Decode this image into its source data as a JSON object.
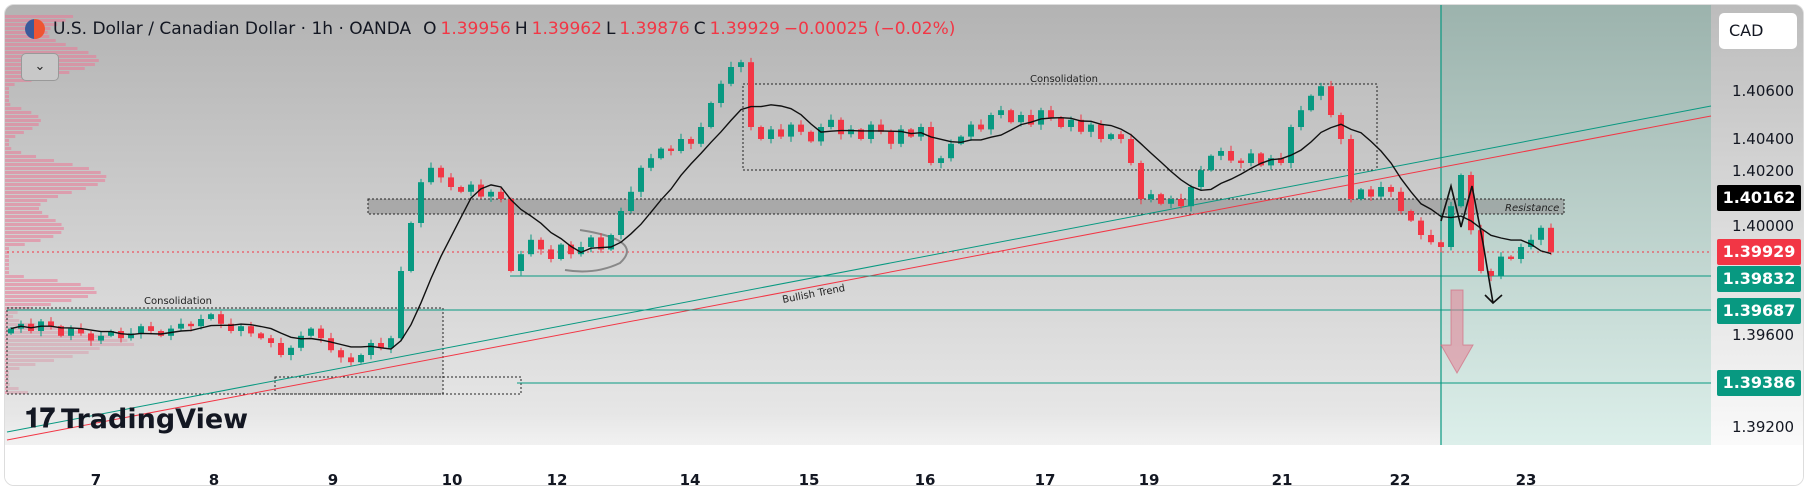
{
  "header": {
    "title": "U.S. Dollar / Canadian Dollar · 1h · OANDA",
    "open_label": "O",
    "open": "1.39956",
    "high_label": "H",
    "high": "1.39962",
    "low_label": "L",
    "low": "1.39876",
    "close_label": "C",
    "close": "1.39929",
    "change": "−0.00025 (−0.02%)"
  },
  "currency_button": "CAD",
  "dropdown_icon": "chevron-down-icon",
  "logo": "TradingView",
  "colors": {
    "up": "#089981",
    "down": "#f23645",
    "ma": "#111111",
    "target_zone": "#9fb8b2"
  },
  "chart_data": {
    "type": "candlestick",
    "title": "U.S. Dollar / Canadian Dollar · 1h · OANDA",
    "ylim": [
      1.3908,
      1.409
    ],
    "y_ticks": [
      "1.40600",
      "1.40400",
      "1.40200",
      "1.40000",
      "1.39600",
      "1.39200"
    ],
    "x_ticks": [
      "7",
      "8",
      "9",
      "10",
      "12",
      "14",
      "15",
      "16",
      "17",
      "19",
      "21",
      "22",
      "23"
    ],
    "closes": [
      1.3961,
      1.3963,
      1.396,
      1.3964,
      1.3962,
      1.3958,
      1.3961,
      1.3959,
      1.3956,
      1.3958,
      1.396,
      1.3957,
      1.3959,
      1.3962,
      1.396,
      1.3958,
      1.3961,
      1.3963,
      1.3962,
      1.3965,
      1.3967,
      1.3963,
      1.396,
      1.3962,
      1.3959,
      1.3957,
      1.3955,
      1.395,
      1.3953,
      1.3958,
      1.3961,
      1.3957,
      1.3952,
      1.3949,
      1.3947,
      1.395,
      1.3955,
      1.3953,
      1.3957,
      1.3985,
      1.4005,
      1.4022,
      1.4028,
      1.4024,
      1.402,
      1.4018,
      1.4021,
      1.4016,
      1.4018,
      1.4015,
      1.3985,
      1.3992,
      1.3998,
      1.3994,
      1.399,
      1.3996,
      1.3992,
      1.3995,
      1.3999,
      1.3994,
      1.4,
      1.401,
      1.4018,
      1.4028,
      1.4032,
      1.4036,
      1.4035,
      1.404,
      1.4038,
      1.4045,
      1.4055,
      1.4063,
      1.407,
      1.4072,
      1.4045,
      1.404,
      1.4044,
      1.4041,
      1.4046,
      1.4043,
      1.4039,
      1.4045,
      1.4048,
      1.4042,
      1.4044,
      1.404,
      1.4046,
      1.4043,
      1.4038,
      1.4044,
      1.4041,
      1.4045,
      1.403,
      1.4032,
      1.4038,
      1.4041,
      1.4046,
      1.4044,
      1.405,
      1.4052,
      1.4047,
      1.405,
      1.4046,
      1.4052,
      1.4049,
      1.4045,
      1.4048,
      1.4043,
      1.4046,
      1.404,
      1.4042,
      1.404,
      1.403,
      1.4015,
      1.4017,
      1.4013,
      1.4015,
      1.4012,
      1.402,
      1.4027,
      1.4033,
      1.4035,
      1.4031,
      1.403,
      1.4034,
      1.4029,
      1.4032,
      1.403,
      1.4045,
      1.4052,
      1.4058,
      1.4062,
      1.405,
      1.404,
      1.4015,
      1.4019,
      1.4016,
      1.402,
      1.4018,
      1.401,
      1.4006,
      1.4,
      1.3997,
      1.3995,
      1.4012,
      1.4025,
      1.4002,
      1.3985,
      1.3983,
      1.3991,
      1.399,
      1.3995,
      1.3998,
      1.4003,
      1.3993
    ],
    "moving_average": {
      "name": "MA",
      "period": 8
    },
    "horizontal_levels": [
      {
        "price": "1.39832"
      },
      {
        "price": "1.39687"
      },
      {
        "price": "1.39386"
      }
    ],
    "price_labels": {
      "high_marker": "1.40162",
      "last": "1.39929"
    },
    "annotations": [
      "Consolidation",
      "Consolidation",
      "Resistance",
      "Bullish Trend"
    ]
  }
}
